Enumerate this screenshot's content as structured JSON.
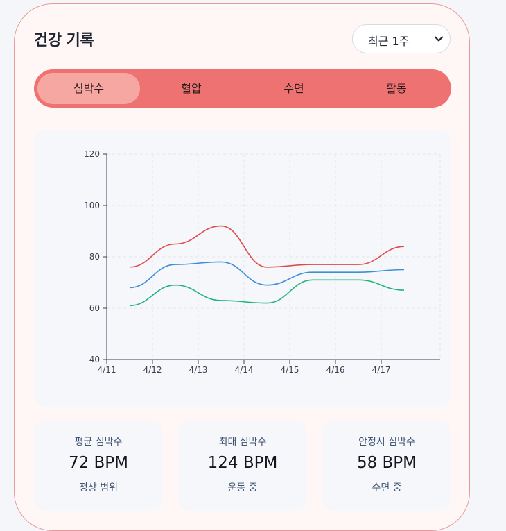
{
  "header": {
    "title": "건강 기록",
    "range_select": {
      "selected": "최근 1주"
    }
  },
  "tabs": [
    {
      "label": "심박수",
      "active": true
    },
    {
      "label": "혈압",
      "active": false
    },
    {
      "label": "수면",
      "active": false
    },
    {
      "label": "활동",
      "active": false
    }
  ],
  "chart_data": {
    "type": "line",
    "x_ticks": [
      "4/11",
      "4/12",
      "4/13",
      "4/14",
      "4/15",
      "4/16",
      "4/17"
    ],
    "y_ticks": [
      40,
      60,
      80,
      100,
      120
    ],
    "ylim": [
      40,
      120
    ],
    "grid": true,
    "series": [
      {
        "color": "#e04a4a",
        "x": [
          0.5,
          1.5,
          2.5,
          3.5,
          4.5,
          5.5,
          6.5
        ],
        "values": [
          76,
          85,
          92,
          76,
          77,
          77,
          84
        ]
      },
      {
        "color": "#3b8fd9",
        "x": [
          0.5,
          1.5,
          2.5,
          3.5,
          4.5,
          5.5,
          6.5
        ],
        "values": [
          68,
          77,
          78,
          69,
          74,
          74,
          75
        ]
      },
      {
        "color": "#20b37a",
        "x": [
          0.5,
          1.5,
          2.5,
          3.5,
          4.5,
          5.5,
          6.5
        ],
        "values": [
          61,
          69,
          63,
          62,
          71,
          71,
          67
        ]
      }
    ]
  },
  "stats": [
    {
      "label": "평균 심박수",
      "value": "72 BPM",
      "sub": "정상 범위"
    },
    {
      "label": "최대 심박수",
      "value": "124 BPM",
      "sub": "운동 중"
    },
    {
      "label": "안정시 심박수",
      "value": "58 BPM",
      "sub": "수면 중"
    }
  ],
  "colors": {
    "accent": "#ee7272",
    "active_tab": "#f6a7a2",
    "card_border": "#e89a9a"
  },
  "icons": {
    "range_select": "chevron-down-icon"
  }
}
